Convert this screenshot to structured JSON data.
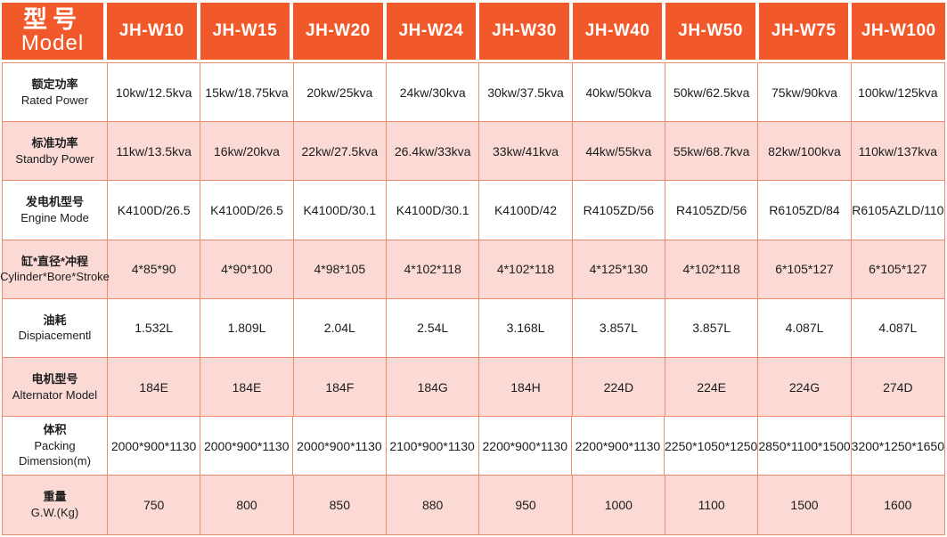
{
  "colors": {
    "header_bg": "#F1592A",
    "header_text": "#FFFFFF",
    "row_pink": "#FBDAD5",
    "row_white": "#FFFFFF",
    "grid_border": "#EF8C70"
  },
  "table": {
    "header": {
      "label_zh": "型号",
      "label_en": "Model",
      "models": [
        "JH-W10",
        "JH-W15",
        "JH-W20",
        "JH-W24",
        "JH-W30",
        "JH-W40",
        "JH-W50",
        "JH-W75",
        "JH-W100"
      ]
    },
    "rows": [
      {
        "zh": "额定功率",
        "en": "Rated Power",
        "values": [
          "10kw/12.5kva",
          "15kw/18.75kva",
          "20kw/25kva",
          "24kw/30kva",
          "30kw/37.5kva",
          "40kw/50kva",
          "50kw/62.5kva",
          "75kw/90kva",
          "100kw/125kva"
        ]
      },
      {
        "zh": "标准功率",
        "en": "Standby Power",
        "values": [
          "11kw/13.5kva",
          "16kw/20kva",
          "22kw/27.5kva",
          "26.4kw/33kva",
          "33kw/41kva",
          "44kw/55kva",
          "55kw/68.7kva",
          "82kw/100kva",
          "110kw/137kva"
        ]
      },
      {
        "zh": "发电机型号",
        "en": "Engine Mode",
        "values": [
          "K4100D/26.5",
          "K4100D/26.5",
          "K4100D/30.1",
          "K4100D/30.1",
          "K4100D/42",
          "R4105ZD/56",
          "R4105ZD/56",
          "R6105ZD/84",
          "R6105AZLD/110"
        ]
      },
      {
        "zh": "缸*直径*冲程",
        "en": "Cylinder*Bore*Stroke",
        "values": [
          "4*85*90",
          "4*90*100",
          "4*98*105",
          "4*102*118",
          "4*102*118",
          "4*125*130",
          "4*102*118",
          "6*105*127",
          "6*105*127"
        ]
      },
      {
        "zh": "油耗",
        "en": "Dispiacementl",
        "values": [
          "1.532L",
          "1.809L",
          "2.04L",
          "2.54L",
          "3.168L",
          "3.857L",
          "3.857L",
          "4.087L",
          "4.087L"
        ]
      },
      {
        "zh": "电机型号",
        "en": "Alternator Model",
        "values": [
          "184E",
          "184E",
          "184F",
          "184G",
          "184H",
          "224D",
          "224E",
          "224G",
          "274D"
        ]
      },
      {
        "zh": "体积",
        "en": "Packing Dimension(m)",
        "values": [
          "2000*900*1130",
          "2000*900*1130",
          "2000*900*1130",
          "2100*900*1130",
          "2200*900*1130",
          "2200*900*1130",
          "2250*1050*1250",
          "2850*1100*1500",
          "3200*1250*1650"
        ]
      },
      {
        "zh": "重量",
        "en": "G.W.(Kg)",
        "values": [
          "750",
          "800",
          "850",
          "880",
          "950",
          "1000",
          "1100",
          "1500",
          "1600"
        ]
      }
    ]
  }
}
